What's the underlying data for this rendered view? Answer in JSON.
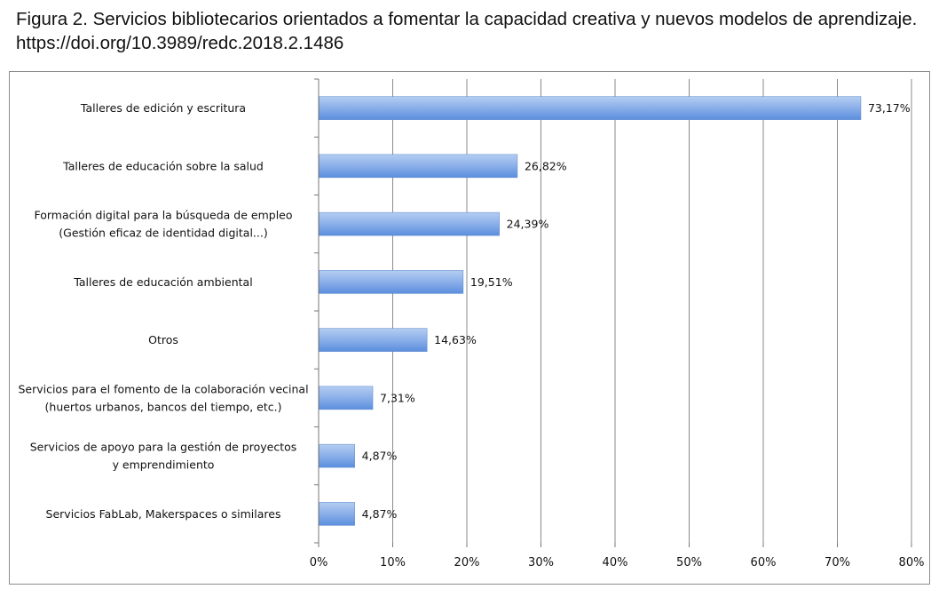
{
  "caption": "Figura 2. Servicios bibliotecarios orientados a fomentar la capacidad creativa y nuevos modelos de aprendizaje. https://doi.org/10.3989/redc.2018.2.1486",
  "chart_data": {
    "type": "bar",
    "orientation": "horizontal",
    "categories": [
      [
        "Talleres de edición y escritura"
      ],
      [
        "Talleres de educación sobre la salud"
      ],
      [
        "Formación digital para la búsqueda de empleo",
        "(Gestión eficaz de identidad digital...)"
      ],
      [
        "Talleres de educación ambiental"
      ],
      [
        "Otros"
      ],
      [
        "Servicios para el fomento de la colaboración vecinal",
        "(huertos urbanos, bancos del tiempo, etc.)"
      ],
      [
        "Servicios de apoyo para la gestión de proyectos",
        "y emprendimiento"
      ],
      [
        "Servicios FabLab, Makerspaces o similares"
      ]
    ],
    "values": [
      73.17,
      26.82,
      24.39,
      19.51,
      14.63,
      7.31,
      4.87,
      4.87
    ],
    "data_labels": [
      "73,17%",
      "26,82%",
      "24,39%",
      "19,51%",
      "14,63%",
      "7,31%",
      "4,87%",
      "4,87%"
    ],
    "xlim": [
      0,
      80
    ],
    "x_ticks": [
      0,
      10,
      20,
      30,
      40,
      50,
      60,
      70,
      80
    ],
    "x_tick_labels": [
      "0%",
      "10%",
      "20%",
      "30%",
      "40%",
      "50%",
      "60%",
      "70%",
      "80%"
    ],
    "grid": "vertical",
    "legend": "none",
    "colors": {
      "bar_light": "#b4cdf2",
      "bar_dark": "#5b8ede",
      "grid": "#8a8a8a",
      "axis": "#777777"
    }
  }
}
